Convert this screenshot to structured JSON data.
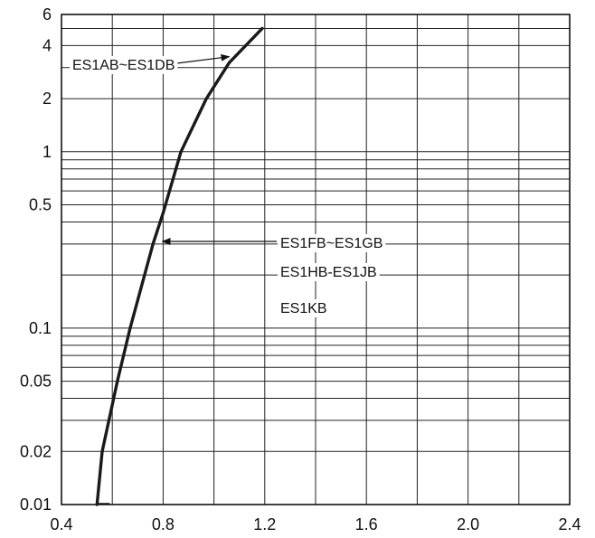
{
  "chart_data": {
    "type": "line",
    "x_scale": "linear",
    "y_scale": "log",
    "xlim": [
      0.4,
      2.4
    ],
    "ylim": [
      0.01,
      6
    ],
    "grid": true,
    "x_ticks": [
      {
        "value": 0.4,
        "label": "0.4"
      },
      {
        "value": 0.8,
        "label": "0.8"
      },
      {
        "value": 1.2,
        "label": "1.2"
      },
      {
        "value": 1.6,
        "label": "1.6"
      },
      {
        "value": 2.0,
        "label": "2.0"
      },
      {
        "value": 2.4,
        "label": "2.4"
      }
    ],
    "y_ticks": [
      {
        "value": 0.01,
        "label": "0.01"
      },
      {
        "value": 0.02,
        "label": "0.02"
      },
      {
        "value": 0.05,
        "label": "0.05"
      },
      {
        "value": 0.1,
        "label": "0.1"
      },
      {
        "value": 0.5,
        "label": "0.5"
      },
      {
        "value": 1,
        "label": "1"
      },
      {
        "value": 2,
        "label": "2"
      },
      {
        "value": 4,
        "label": "4"
      },
      {
        "value": 6,
        "label": "6"
      }
    ],
    "x_gridlines": [
      0.4,
      0.6,
      0.8,
      1.0,
      1.2,
      1.4,
      1.6,
      1.8,
      2.0,
      2.2,
      2.4
    ],
    "y_gridlines": [
      0.01,
      0.02,
      0.03,
      0.04,
      0.05,
      0.06,
      0.07,
      0.08,
      0.09,
      0.1,
      0.2,
      0.3,
      0.4,
      0.5,
      0.6,
      0.7,
      0.8,
      0.9,
      1,
      2,
      3,
      4,
      5,
      6
    ],
    "series": [
      {
        "x": [
          0.54,
          0.56,
          0.62,
          0.67,
          0.76,
          0.8,
          0.87,
          0.97,
          1.06,
          1.19
        ],
        "y": [
          0.01,
          0.02,
          0.05,
          0.1,
          0.3,
          0.45,
          1.0,
          2.0,
          3.2,
          5.0
        ]
      }
    ],
    "annotations": [
      {
        "text": "ES1AB~ES1DB",
        "points_to": {
          "x": 1.06,
          "y": 3.5
        }
      },
      {
        "text": "ES1FB~ES1GB",
        "points_to": {
          "x": 0.79,
          "y": 0.37
        }
      },
      {
        "text": "ES1HB-ES1JB"
      },
      {
        "text": "ES1KB"
      }
    ]
  }
}
